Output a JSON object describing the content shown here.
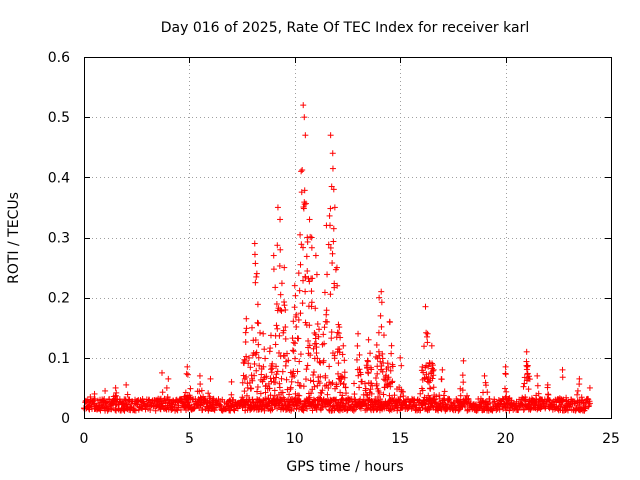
{
  "chart_data": {
    "type": "scatter",
    "title": "Day 016 of 2025, Rate Of TEC Index for receiver karl",
    "xlabel": "GPS time / hours",
    "ylabel": "ROTI / TECUs",
    "xlim": [
      0,
      25
    ],
    "ylim": [
      0,
      0.6
    ],
    "xticks": [
      "0",
      "5",
      "10",
      "15",
      "20",
      "25"
    ],
    "yticks": [
      "0",
      "0.1",
      "0.2",
      "0.3",
      "0.4",
      "0.5",
      "0.6"
    ],
    "grid": true,
    "marker": "+",
    "color": "#ff0000",
    "series": [
      {
        "name": "ROTI",
        "points": [
          [
            0.3,
            0.035
          ],
          [
            0.5,
            0.04
          ],
          [
            1.0,
            0.045
          ],
          [
            1.5,
            0.05
          ],
          [
            2.0,
            0.055
          ],
          [
            3.7,
            0.075
          ],
          [
            4.0,
            0.065
          ],
          [
            4.9,
            0.085
          ],
          [
            5.5,
            0.07
          ],
          [
            6.0,
            0.065
          ],
          [
            7.0,
            0.06
          ],
          [
            7.7,
            0.165
          ],
          [
            8.1,
            0.29
          ],
          [
            8.2,
            0.24
          ],
          [
            8.5,
            0.14
          ],
          [
            9.0,
            0.27
          ],
          [
            9.2,
            0.35
          ],
          [
            9.3,
            0.33
          ],
          [
            9.5,
            0.25
          ],
          [
            10.0,
            0.22
          ],
          [
            10.3,
            0.41
          ],
          [
            10.4,
            0.52
          ],
          [
            10.45,
            0.5
          ],
          [
            10.5,
            0.47
          ],
          [
            10.7,
            0.33
          ],
          [
            10.8,
            0.3
          ],
          [
            11.0,
            0.27
          ],
          [
            11.5,
            0.32
          ],
          [
            11.7,
            0.47
          ],
          [
            11.8,
            0.44
          ],
          [
            11.85,
            0.38
          ],
          [
            11.9,
            0.35
          ],
          [
            12.0,
            0.25
          ],
          [
            12.3,
            0.12
          ],
          [
            13.0,
            0.14
          ],
          [
            13.5,
            0.13
          ],
          [
            14.0,
            0.2
          ],
          [
            14.1,
            0.21
          ],
          [
            14.5,
            0.16
          ],
          [
            15.0,
            0.1
          ],
          [
            16.2,
            0.185
          ],
          [
            16.3,
            0.14
          ],
          [
            16.5,
            0.12
          ],
          [
            17.0,
            0.08
          ],
          [
            18.0,
            0.095
          ],
          [
            19.0,
            0.07
          ],
          [
            20.0,
            0.085
          ],
          [
            21.0,
            0.11
          ],
          [
            21.5,
            0.07
          ],
          [
            22.0,
            0.055
          ],
          [
            22.7,
            0.08
          ],
          [
            23.5,
            0.065
          ],
          [
            24.0,
            0.05
          ]
        ]
      }
    ]
  }
}
